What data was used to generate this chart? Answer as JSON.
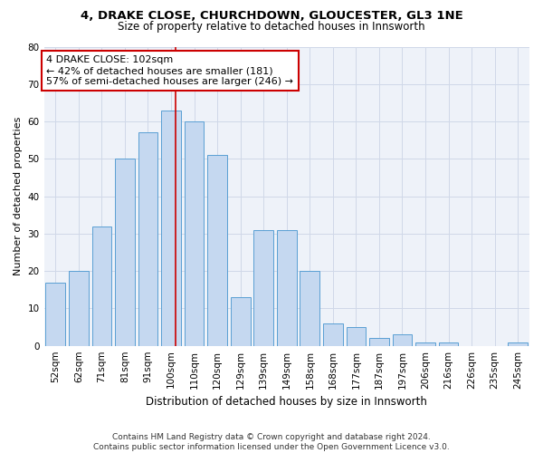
{
  "title1": "4, DRAKE CLOSE, CHURCHDOWN, GLOUCESTER, GL3 1NE",
  "title2": "Size of property relative to detached houses in Innsworth",
  "xlabel": "Distribution of detached houses by size in Innsworth",
  "ylabel": "Number of detached properties",
  "categories": [
    "52sqm",
    "62sqm",
    "71sqm",
    "81sqm",
    "91sqm",
    "100sqm",
    "110sqm",
    "120sqm",
    "129sqm",
    "139sqm",
    "149sqm",
    "158sqm",
    "168sqm",
    "177sqm",
    "187sqm",
    "197sqm",
    "206sqm",
    "216sqm",
    "226sqm",
    "235sqm",
    "245sqm"
  ],
  "values": [
    17,
    20,
    32,
    50,
    57,
    63,
    60,
    51,
    13,
    31,
    31,
    20,
    6,
    5,
    2,
    3,
    1,
    1,
    0,
    0,
    1
  ],
  "bar_color": "#c5d8f0",
  "bar_edgecolor": "#5a9fd4",
  "vline_x_index": 5.2,
  "vline_color": "#cc0000",
  "annotation_line1": "4 DRAKE CLOSE: 102sqm",
  "annotation_line2": "← 42% of detached houses are smaller (181)",
  "annotation_line3": "57% of semi-detached houses are larger (246) →",
  "annotation_box_color": "#ffffff",
  "annotation_box_edgecolor": "#cc0000",
  "ylim": [
    0,
    80
  ],
  "yticks": [
    0,
    10,
    20,
    30,
    40,
    50,
    60,
    70,
    80
  ],
  "grid_color": "#d0d8e8",
  "background_color": "#eef2f9",
  "footer_text": "Contains HM Land Registry data © Crown copyright and database right 2024.\nContains public sector information licensed under the Open Government Licence v3.0.",
  "title1_fontsize": 9.5,
  "title2_fontsize": 8.5,
  "xlabel_fontsize": 8.5,
  "ylabel_fontsize": 8,
  "tick_fontsize": 7.5,
  "annotation_fontsize": 8,
  "footer_fontsize": 6.5
}
